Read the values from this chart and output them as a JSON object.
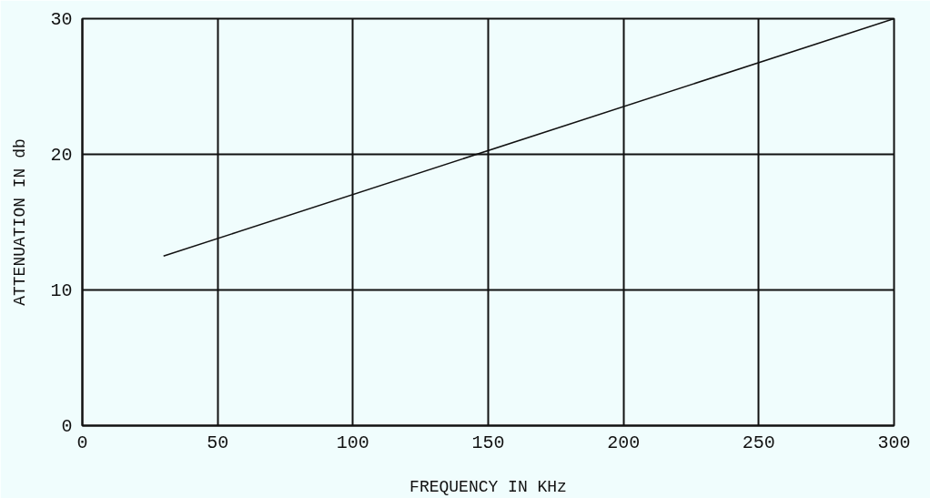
{
  "chart_data": {
    "type": "line",
    "xlabel": "FREQUENCY IN KHz",
    "ylabel": "ATTENUATION IN db",
    "x": [
      30,
      300
    ],
    "values": [
      12.5,
      30
    ],
    "color": "#111111",
    "xlim": [
      0,
      300
    ],
    "ylim": [
      0,
      30
    ],
    "xticks": [
      0,
      50,
      100,
      150,
      200,
      250,
      300
    ],
    "yticks": [
      0,
      10,
      20,
      30
    ],
    "grid": true,
    "marker": "none",
    "line_style": "solid"
  }
}
